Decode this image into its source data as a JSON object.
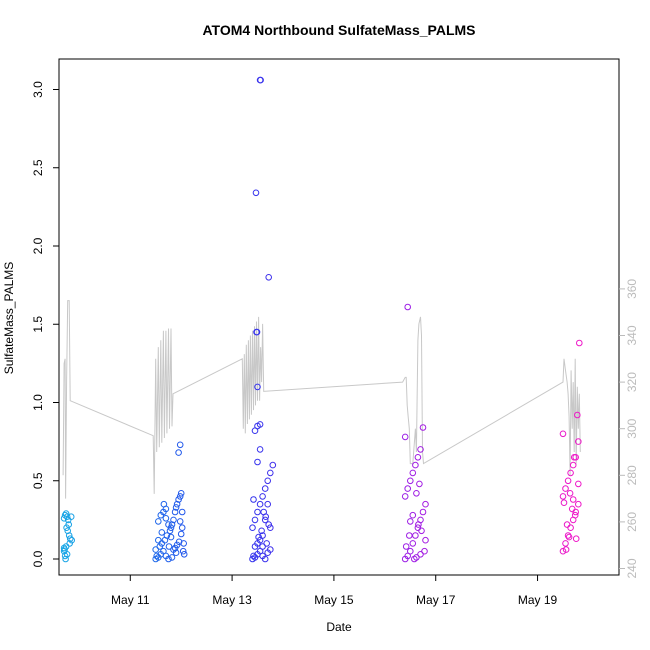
{
  "chart_data": {
    "type": "scatter",
    "title": "ATOM4 Northbound SulfateMass_PALMS",
    "xlabel": "Date",
    "ylabel": "SulfateMass_PALMS",
    "x_unit": "day of May (decimal)",
    "xlim": [
      9.6,
      20.6
    ],
    "ylim": [
      0,
      3.1
    ],
    "y2lim": [
      240,
      365
    ],
    "x_ticks": [
      11,
      13,
      15,
      17,
      19
    ],
    "x_tick_labels": [
      "May 11",
      "May 13",
      "May 15",
      "May 17",
      "May 19"
    ],
    "y_ticks": [
      0.0,
      0.5,
      1.0,
      1.5,
      2.0,
      2.5,
      3.0
    ],
    "y_tick_labels": [
      "0.0",
      "0.5",
      "1.0",
      "1.5",
      "2.0",
      "2.5",
      "3.0"
    ],
    "y2_ticks": [
      240,
      260,
      280,
      300,
      320,
      340,
      360
    ],
    "y2_tick_labels": [
      "240",
      "260",
      "280",
      "300",
      "320",
      "340",
      "360"
    ],
    "colors": {
      "series_right_axis": "#c8c8c8",
      "frame": "#000000",
      "right_axis": "#bbbbbb"
    },
    "marker_color_scale": [
      "#18a6e6",
      "#2636ee",
      "#9a1ee6",
      "#ee18c8"
    ],
    "series": [
      {
        "type": "scatter",
        "axis": "left",
        "points": [
          [
            9.7,
            0.05
          ],
          [
            9.72,
            0.02
          ],
          [
            9.74,
            0.08
          ],
          [
            9.7,
            0.26
          ],
          [
            9.72,
            0.28
          ],
          [
            9.76,
            0.27
          ],
          [
            9.78,
            0.25
          ],
          [
            9.75,
            0.2
          ],
          [
            9.77,
            0.18
          ],
          [
            9.8,
            0.15
          ],
          [
            9.82,
            0.13
          ],
          [
            9.84,
            0.27
          ],
          [
            9.73,
            0.0
          ],
          [
            9.71,
            0.06
          ],
          [
            9.79,
            0.22
          ],
          [
            9.85,
            0.12
          ],
          [
            9.74,
            0.29
          ],
          [
            9.76,
            0.03
          ],
          [
            9.7,
            0.07
          ],
          [
            9.81,
            0.1
          ],
          [
            11.5,
            0.0
          ],
          [
            11.52,
            0.02
          ],
          [
            11.55,
            0.01
          ],
          [
            11.6,
            0.03
          ],
          [
            11.65,
            0.05
          ],
          [
            11.7,
            0.02
          ],
          [
            11.75,
            0.0
          ],
          [
            11.5,
            0.06
          ],
          [
            11.58,
            0.08
          ],
          [
            11.62,
            0.1
          ],
          [
            11.68,
            0.12
          ],
          [
            11.72,
            0.15
          ],
          [
            11.78,
            0.18
          ],
          [
            11.8,
            0.2
          ],
          [
            11.82,
            0.22
          ],
          [
            11.85,
            0.25
          ],
          [
            11.88,
            0.3
          ],
          [
            11.9,
            0.33
          ],
          [
            11.92,
            0.35
          ],
          [
            11.95,
            0.38
          ],
          [
            11.98,
            0.4
          ],
          [
            12.0,
            0.42
          ],
          [
            11.95,
            0.68
          ],
          [
            11.98,
            0.73
          ],
          [
            11.55,
            0.24
          ],
          [
            11.6,
            0.28
          ],
          [
            11.65,
            0.3
          ],
          [
            11.7,
            0.32
          ],
          [
            11.75,
            0.22
          ],
          [
            11.8,
            0.14
          ],
          [
            11.85,
            0.06
          ],
          [
            11.9,
            0.04
          ],
          [
            11.92,
            0.09
          ],
          [
            11.96,
            0.11
          ],
          [
            12.0,
            0.16
          ],
          [
            12.02,
            0.2
          ],
          [
            12.04,
            0.05
          ],
          [
            12.06,
            0.03
          ],
          [
            11.55,
            0.12
          ],
          [
            11.62,
            0.17
          ],
          [
            11.7,
            0.26
          ],
          [
            11.76,
            0.08
          ],
          [
            11.82,
            0.01
          ],
          [
            11.88,
            0.07
          ],
          [
            12.05,
            0.1
          ],
          [
            11.98,
            0.24
          ],
          [
            12.02,
            0.3
          ],
          [
            11.66,
            0.35
          ],
          [
            13.4,
            0.0
          ],
          [
            13.42,
            0.02
          ],
          [
            13.45,
            0.01
          ],
          [
            13.5,
            0.03
          ],
          [
            13.55,
            0.05
          ],
          [
            13.6,
            0.02
          ],
          [
            13.65,
            0.0
          ],
          [
            13.7,
            0.04
          ],
          [
            13.75,
            0.06
          ],
          [
            13.45,
            0.08
          ],
          [
            13.5,
            0.1
          ],
          [
            13.55,
            0.12
          ],
          [
            13.6,
            0.15
          ],
          [
            13.4,
            0.2
          ],
          [
            13.45,
            0.25
          ],
          [
            13.5,
            0.3
          ],
          [
            13.55,
            0.35
          ],
          [
            13.6,
            0.4
          ],
          [
            13.65,
            0.45
          ],
          [
            13.7,
            0.5
          ],
          [
            13.75,
            0.55
          ],
          [
            13.8,
            0.6
          ],
          [
            13.5,
            0.62
          ],
          [
            13.55,
            0.7
          ],
          [
            13.45,
            0.82
          ],
          [
            13.5,
            0.85
          ],
          [
            13.55,
            0.86
          ],
          [
            13.5,
            1.1
          ],
          [
            13.48,
            1.45
          ],
          [
            13.49,
            1.45
          ],
          [
            13.47,
            2.34
          ],
          [
            13.72,
            1.8
          ],
          [
            13.55,
            3.06
          ],
          [
            13.56,
            3.06
          ],
          [
            13.65,
            0.25
          ],
          [
            13.7,
            0.35
          ],
          [
            13.75,
            0.2
          ],
          [
            13.62,
            0.3
          ],
          [
            13.58,
            0.18
          ],
          [
            13.52,
            0.14
          ],
          [
            13.68,
            0.1
          ],
          [
            13.72,
            0.22
          ],
          [
            13.42,
            0.38
          ],
          [
            13.66,
            0.27
          ],
          [
            13.6,
            0.08
          ],
          [
            16.4,
            0.0
          ],
          [
            16.45,
            0.02
          ],
          [
            16.5,
            0.05
          ],
          [
            16.55,
            0.1
          ],
          [
            16.6,
            0.15
          ],
          [
            16.65,
            0.2
          ],
          [
            16.7,
            0.25
          ],
          [
            16.75,
            0.3
          ],
          [
            16.8,
            0.35
          ],
          [
            16.4,
            0.4
          ],
          [
            16.45,
            0.45
          ],
          [
            16.5,
            0.5
          ],
          [
            16.55,
            0.55
          ],
          [
            16.6,
            0.6
          ],
          [
            16.65,
            0.65
          ],
          [
            16.7,
            0.7
          ],
          [
            16.4,
            0.78
          ],
          [
            16.75,
            0.84
          ],
          [
            16.45,
            1.61
          ],
          [
            16.58,
            0.0
          ],
          [
            16.62,
            0.01
          ],
          [
            16.7,
            0.03
          ],
          [
            16.78,
            0.05
          ],
          [
            16.5,
            0.24
          ],
          [
            16.55,
            0.28
          ],
          [
            16.66,
            0.22
          ],
          [
            16.72,
            0.18
          ],
          [
            16.8,
            0.12
          ],
          [
            16.42,
            0.08
          ],
          [
            16.48,
            0.15
          ],
          [
            16.62,
            0.42
          ],
          [
            16.68,
            0.48
          ],
          [
            19.5,
            0.05
          ],
          [
            19.55,
            0.1
          ],
          [
            19.6,
            0.15
          ],
          [
            19.65,
            0.2
          ],
          [
            19.7,
            0.25
          ],
          [
            19.75,
            0.3
          ],
          [
            19.8,
            0.35
          ],
          [
            19.5,
            0.4
          ],
          [
            19.55,
            0.45
          ],
          [
            19.6,
            0.5
          ],
          [
            19.65,
            0.55
          ],
          [
            19.7,
            0.6
          ],
          [
            19.75,
            0.65
          ],
          [
            19.5,
            0.8
          ],
          [
            19.78,
            0.92
          ],
          [
            19.82,
            1.38
          ],
          [
            19.8,
            0.75
          ],
          [
            19.72,
            0.65
          ],
          [
            19.58,
            0.22
          ],
          [
            19.62,
            0.14
          ],
          [
            19.68,
            0.32
          ],
          [
            19.74,
            0.28
          ],
          [
            19.76,
            0.13
          ],
          [
            19.8,
            0.48
          ],
          [
            19.52,
            0.36
          ],
          [
            19.56,
            0.06
          ],
          [
            19.64,
            0.42
          ],
          [
            19.7,
            0.38
          ]
        ]
      },
      {
        "type": "line",
        "axis": "right",
        "points": [
          [
            9.68,
            280
          ],
          [
            9.7,
            328
          ],
          [
            9.72,
            330
          ],
          [
            9.73,
            270
          ],
          [
            9.75,
            320
          ],
          [
            9.77,
            355
          ],
          [
            9.8,
            355
          ],
          [
            9.82,
            312
          ],
          [
            11.45,
            297
          ],
          [
            11.47,
            272
          ],
          [
            11.5,
            330
          ],
          [
            11.52,
            290
          ],
          [
            11.55,
            335
          ],
          [
            11.57,
            292
          ],
          [
            11.6,
            338
          ],
          [
            11.62,
            294
          ],
          [
            11.65,
            342
          ],
          [
            11.67,
            296
          ],
          [
            11.7,
            342
          ],
          [
            11.72,
            298
          ],
          [
            11.75,
            343
          ],
          [
            11.77,
            300
          ],
          [
            11.8,
            343
          ],
          [
            11.82,
            301
          ],
          [
            11.84,
            315
          ],
          [
            13.2,
            330
          ],
          [
            13.22,
            300
          ],
          [
            13.24,
            332
          ],
          [
            13.26,
            298
          ],
          [
            13.28,
            336
          ],
          [
            13.3,
            302
          ],
          [
            13.32,
            338
          ],
          [
            13.34,
            304
          ],
          [
            13.36,
            340
          ],
          [
            13.38,
            306
          ],
          [
            13.4,
            342
          ],
          [
            13.42,
            308
          ],
          [
            13.44,
            344
          ],
          [
            13.46,
            310
          ],
          [
            13.48,
            346
          ],
          [
            13.5,
            312
          ],
          [
            13.52,
            348
          ],
          [
            13.54,
            312
          ],
          [
            13.56,
            335
          ],
          [
            13.58,
            320
          ],
          [
            13.6,
            345
          ],
          [
            13.62,
            316
          ],
          [
            16.35,
            320
          ],
          [
            16.4,
            322
          ],
          [
            16.42,
            322
          ],
          [
            16.44,
            310
          ],
          [
            16.46,
            305
          ],
          [
            16.48,
            300
          ],
          [
            16.5,
            285
          ],
          [
            16.55,
            285
          ],
          [
            16.6,
            300
          ],
          [
            16.62,
            290
          ],
          [
            16.65,
            338
          ],
          [
            16.67,
            345
          ],
          [
            16.7,
            348
          ],
          [
            16.72,
            340
          ],
          [
            16.74,
            290
          ],
          [
            16.76,
            285
          ],
          [
            19.5,
            320
          ],
          [
            19.52,
            330
          ],
          [
            19.55,
            325
          ],
          [
            19.58,
            320
          ],
          [
            19.6,
            315
          ],
          [
            19.62,
            305
          ],
          [
            19.64,
            280
          ],
          [
            19.66,
            325
          ],
          [
            19.68,
            300
          ],
          [
            19.7,
            320
          ],
          [
            19.72,
            290
          ],
          [
            19.74,
            330
          ],
          [
            19.76,
            285
          ],
          [
            19.78,
            318
          ],
          [
            19.8,
            300
          ],
          [
            19.82,
            315
          ],
          [
            19.84,
            290
          ]
        ]
      }
    ]
  }
}
